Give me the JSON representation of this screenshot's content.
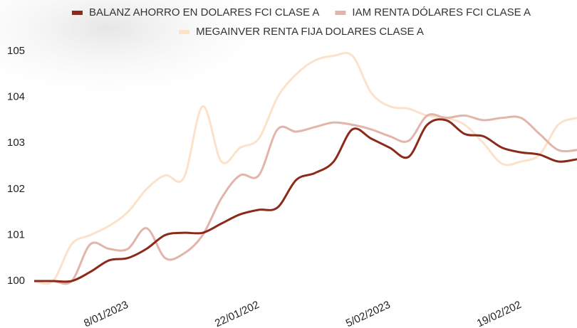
{
  "chart_data": {
    "type": "line",
    "x": [
      "2022-12-29",
      "2022-12-31",
      "2023-01-02",
      "2023-01-04",
      "2023-01-06",
      "2023-01-08",
      "2023-01-10",
      "2023-01-12",
      "2023-01-14",
      "2023-01-16",
      "2023-01-18",
      "2023-01-20",
      "2023-01-22",
      "2023-01-24",
      "2023-01-26",
      "2023-01-28",
      "2023-01-30",
      "2023-02-01",
      "2023-02-03",
      "2023-02-05",
      "2023-02-07",
      "2023-02-09",
      "2023-02-11",
      "2023-02-13",
      "2023-02-15",
      "2023-02-17",
      "2023-02-19",
      "2023-02-21",
      "2023-02-23",
      "2023-02-25"
    ],
    "series": [
      {
        "name": "BALANZ AHORRO EN DOLARES FCI CLASE A",
        "color": "#8b2a1a",
        "values": [
          100,
          100,
          100,
          100.2,
          100.45,
          100.5,
          100.7,
          101.0,
          101.05,
          101.05,
          101.25,
          101.45,
          101.55,
          101.6,
          102.2,
          102.35,
          102.6,
          103.3,
          103.1,
          102.9,
          102.7,
          103.4,
          103.5,
          103.2,
          103.15,
          102.9,
          102.8,
          102.75,
          102.6,
          102.65
        ]
      },
      {
        "name": "IAM RENTA DÓLARES FCI CLASE A",
        "color": "#e2b5aa",
        "values": [
          100,
          100,
          100,
          100.8,
          100.7,
          100.7,
          101.15,
          100.5,
          100.6,
          101.0,
          101.8,
          102.3,
          102.3,
          103.3,
          103.25,
          103.35,
          103.45,
          103.4,
          103.3,
          103.15,
          103.05,
          103.6,
          103.55,
          103.6,
          103.5,
          103.55,
          103.55,
          103.2,
          102.85,
          102.85
        ]
      },
      {
        "name": "MEGAINVER RENTA FIJA DOLARES CLASE A",
        "color": "#fbe2c9",
        "values": [
          100,
          100,
          100.8,
          101.0,
          101.2,
          101.5,
          102.0,
          102.3,
          102.25,
          103.8,
          102.6,
          102.9,
          103.1,
          104.0,
          104.5,
          104.8,
          104.9,
          104.9,
          104.1,
          103.8,
          103.75,
          103.6,
          103.55,
          103.4,
          103.0,
          102.55,
          102.6,
          102.75,
          103.4,
          103.55
        ]
      }
    ],
    "xlim": [
      "2022-12-29",
      "2023-02-25"
    ],
    "xticks": [
      {
        "value": "2023-01-08",
        "label": "8/01/2023"
      },
      {
        "value": "2023-01-22",
        "label": "22/01/202"
      },
      {
        "value": "2023-02-05",
        "label": "5/02/2023"
      },
      {
        "value": "2023-02-19",
        "label": "19/02/202"
      }
    ],
    "ylim": [
      100,
      105
    ],
    "yticks": [
      100,
      101,
      102,
      103,
      104,
      105
    ],
    "grid": false,
    "legend": "top"
  }
}
